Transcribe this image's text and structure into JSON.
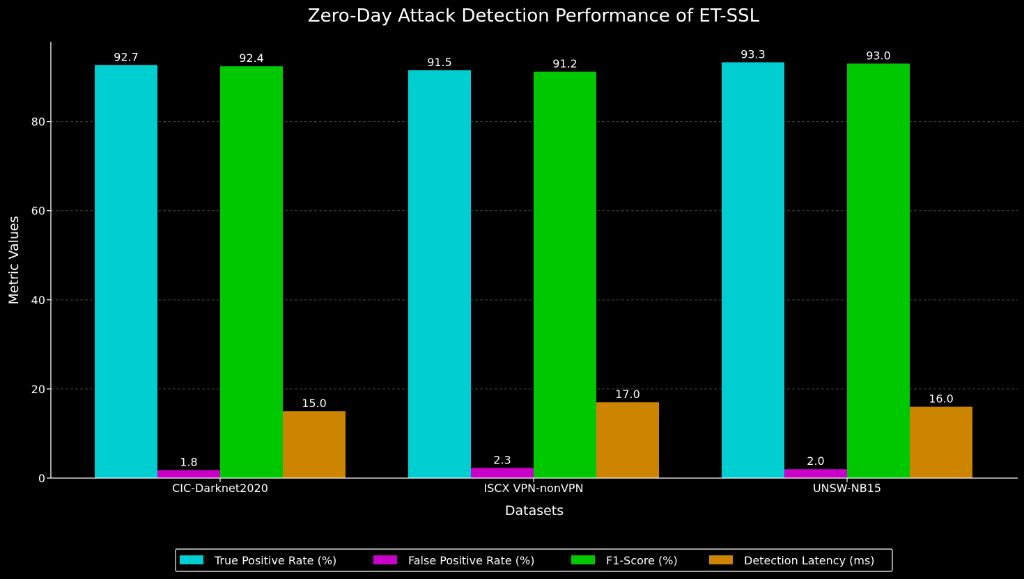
{
  "chart_data": {
    "type": "bar",
    "title": "Zero-Day Attack Detection Performance of ET-SSL",
    "xlabel": "Datasets",
    "ylabel": "Metric Values",
    "categories": [
      "CIC-Darknet2020",
      "ISCX VPN-nonVPN",
      "UNSW-NB15"
    ],
    "ylim": [
      0,
      97.9
    ],
    "yticks": [
      0,
      20,
      40,
      60,
      80
    ],
    "grid": true,
    "legend_position": "bottom-center",
    "series": [
      {
        "name": "True Positive Rate (%)",
        "color": "#00CED1",
        "values": [
          92.7,
          91.5,
          93.3
        ]
      },
      {
        "name": "False Positive Rate (%)",
        "color": "#C800C8",
        "values": [
          1.8,
          2.3,
          2.0
        ]
      },
      {
        "name": "F1-Score (%)",
        "color": "#00C800",
        "values": [
          92.4,
          91.2,
          93.0
        ]
      },
      {
        "name": "Detection Latency (ms)",
        "color": "#CD8500",
        "values": [
          15.0,
          17.0,
          16.0
        ]
      }
    ]
  }
}
